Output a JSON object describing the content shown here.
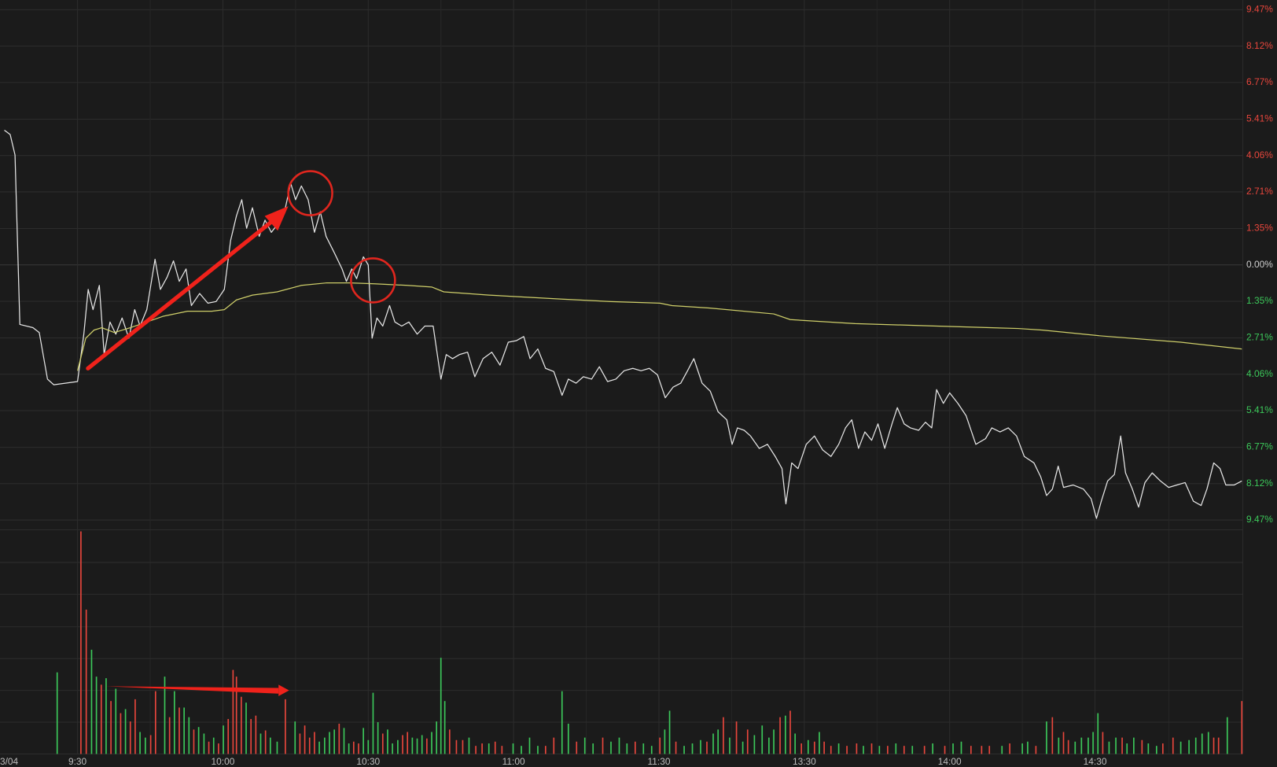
{
  "chart_data": [
    {
      "type": "line",
      "date_label": "3/04",
      "xlim": [
        -16,
        240.5
      ],
      "ylim": [
        -9.47,
        9.47
      ],
      "xticks": [
        {
          "value": 0,
          "label": "9:30"
        },
        {
          "value": 30,
          "label": "10:00"
        },
        {
          "value": 60,
          "label": "10:30"
        },
        {
          "value": 90,
          "label": "11:00"
        },
        {
          "value": 120,
          "label": "11:30"
        },
        {
          "value": 150,
          "label": "13:30"
        },
        {
          "value": 180,
          "label": "14:00"
        },
        {
          "value": 210,
          "label": "14:30"
        }
      ],
      "yticks": [
        {
          "value": 9.47,
          "label": "9.47%"
        },
        {
          "value": 8.12,
          "label": "8.12%"
        },
        {
          "value": 6.77,
          "label": "6.77%"
        },
        {
          "value": 5.41,
          "label": "5.41%"
        },
        {
          "value": 4.06,
          "label": "4.06%"
        },
        {
          "value": 2.71,
          "label": "2.71%"
        },
        {
          "value": 1.35,
          "label": "1.35%"
        },
        {
          "value": 0,
          "label": "0.00%"
        },
        {
          "value": -1.35,
          "label": "1.35%"
        },
        {
          "value": -2.71,
          "label": "2.71%"
        },
        {
          "value": -4.06,
          "label": "4.06%"
        },
        {
          "value": -5.41,
          "label": "5.41%"
        },
        {
          "value": -6.77,
          "label": "6.77%"
        },
        {
          "value": -8.12,
          "label": "8.12%"
        },
        {
          "value": -9.47,
          "label": "9.47%"
        }
      ],
      "tick_colors": {
        "up": "#e8463c",
        "down": "#3cc85a",
        "flat": "#cfcfcf"
      },
      "grid": true,
      "series": [
        {
          "color": "#e6e6e6",
          "x": [
            -15.1,
            -13.9,
            -12.9,
            -11.9,
            -9.2,
            -7.9,
            -6.2,
            -4.9,
            0,
            1.3,
            2.2,
            3.2,
            4.5,
            5.5,
            6.7,
            7.9,
            9.2,
            10.6,
            11.8,
            12.9,
            14.3,
            16.0,
            17.1,
            18.5,
            19.8,
            21.0,
            22.4,
            23.5,
            25.2,
            26.9,
            28.6,
            30.3,
            31.6,
            32.8,
            33.9,
            34.9,
            36.1,
            37.5,
            38.7,
            40.0,
            41.3,
            42.9,
            44.0,
            45.0,
            46.2,
            47.6,
            48.9,
            50.1,
            51.3,
            53.0,
            54.6,
            55.5,
            56.6,
            57.6,
            59.0,
            60.0,
            60.8,
            61.8,
            63.0,
            64.4,
            65.5,
            66.9,
            68.4,
            70.1,
            71.7,
            73.4,
            75.0,
            76.1,
            77.4,
            78.8,
            80.5,
            82.0,
            83.7,
            85.5,
            87.2,
            88.9,
            90.6,
            92.1,
            93.4,
            95.0,
            96.6,
            98.3,
            100.0,
            101.3,
            102.9,
            104.4,
            106.1,
            107.7,
            109.4,
            111.1,
            112.8,
            114.6,
            116.3,
            118.0,
            119.7,
            121.3,
            122.9,
            124.5,
            125.9,
            127.2,
            128.9,
            130.6,
            132.2,
            134.0,
            135.1,
            136.2,
            137.6,
            138.9,
            140.7,
            142.4,
            144.0,
            145.4,
            146.2,
            147.4,
            148.7,
            150.4,
            152.1,
            153.8,
            155.5,
            157.1,
            158.5,
            159.8,
            161.2,
            162.5,
            163.9,
            165.2,
            166.6,
            168.1,
            169.2,
            170.6,
            171.9,
            173.6,
            175.0,
            176.3,
            177.3,
            178.7,
            180.0,
            181.7,
            183.4,
            185.4,
            187.4,
            188.7,
            190.4,
            192.1,
            193.8,
            195.4,
            197.4,
            198.8,
            200.0,
            201.2,
            202.4,
            203.5,
            205.5,
            207.6,
            209.2,
            210.3,
            211.3,
            212.6,
            214.0,
            215.3,
            216.3,
            217.7,
            219.0,
            220.3,
            221.8,
            223.5,
            225.2,
            226.9,
            228.6,
            230.3,
            231.9,
            233.1,
            234.5,
            235.8,
            237.0,
            238.7,
            240.3
          ],
          "values": [
            5.0,
            4.84,
            4.08,
            -2.21,
            -2.33,
            -2.51,
            -4.24,
            -4.45,
            -4.33,
            -2.57,
            -0.91,
            -1.66,
            -0.76,
            -3.33,
            -2.12,
            -2.57,
            -1.97,
            -2.72,
            -1.66,
            -2.27,
            -1.66,
            0.21,
            -0.91,
            -0.45,
            0.15,
            -0.61,
            -0.15,
            -1.51,
            -1.06,
            -1.42,
            -1.36,
            -0.91,
            0.91,
            1.82,
            2.42,
            1.36,
            2.12,
            1.06,
            1.66,
            1.21,
            1.51,
            2.12,
            3.03,
            2.42,
            2.93,
            2.42,
            1.21,
            1.97,
            1.06,
            0.45,
            -0.15,
            -0.61,
            -0.15,
            -0.51,
            0.3,
            0,
            -2.72,
            -1.97,
            -2.27,
            -1.51,
            -2.12,
            -2.27,
            -2.12,
            -2.57,
            -2.27,
            -2.27,
            -4.24,
            -3.33,
            -3.48,
            -3.33,
            -3.24,
            -4.15,
            -3.48,
            -3.24,
            -3.72,
            -2.87,
            -2.81,
            -2.66,
            -3.48,
            -3.12,
            -3.84,
            -3.96,
            -4.84,
            -4.24,
            -4.39,
            -4.15,
            -4.24,
            -3.78,
            -4.33,
            -4.24,
            -3.93,
            -3.84,
            -3.93,
            -3.84,
            -4.08,
            -4.93,
            -4.54,
            -4.39,
            -3.93,
            -3.48,
            -4.39,
            -4.69,
            -5.45,
            -5.75,
            -6.66,
            -6.05,
            -6.14,
            -6.35,
            -6.81,
            -6.66,
            -7.11,
            -7.56,
            -8.87,
            -7.35,
            -7.56,
            -6.66,
            -6.35,
            -6.87,
            -7.11,
            -6.66,
            -6.05,
            -5.75,
            -6.81,
            -6.2,
            -6.51,
            -5.9,
            -6.81,
            -5.9,
            -5.3,
            -5.9,
            -6.05,
            -6.14,
            -5.84,
            -6.05,
            -4.63,
            -5.14,
            -4.75,
            -5.14,
            -5.6,
            -6.66,
            -6.45,
            -6.05,
            -6.2,
            -6.05,
            -6.35,
            -7.11,
            -7.35,
            -7.87,
            -8.56,
            -8.32,
            -7.47,
            -8.26,
            -8.17,
            -8.32,
            -8.68,
            -9.41,
            -8.77,
            -8.02,
            -7.78,
            -6.35,
            -7.72,
            -8.32,
            -8.99,
            -8.08,
            -7.72,
            -8.02,
            -8.26,
            -8.17,
            -8.08,
            -8.77,
            -8.93,
            -8.32,
            -7.35,
            -7.56,
            -8.17,
            -8.17,
            -8.02
          ]
        },
        {
          "color": "#cfcf6a",
          "x": [
            0,
            1.7,
            3.4,
            5.0,
            7.6,
            10.9,
            14.3,
            17.6,
            22.7,
            27.7,
            30.3,
            32.8,
            36.1,
            41.2,
            46.2,
            51.3,
            56.3,
            61.3,
            68.1,
            73.1,
            75.6,
            84.9,
            100,
            110.1,
            120.2,
            122.7,
            130.3,
            143.7,
            147.1,
            160.5,
            177.3,
            194.1,
            199.2,
            210.9,
            227.7,
            240.3
          ],
          "values": [
            -3.93,
            -2.72,
            -2.42,
            -2.33,
            -2.51,
            -2.33,
            -2.12,
            -1.91,
            -1.72,
            -1.72,
            -1.66,
            -1.3,
            -1.12,
            -1.0,
            -0.76,
            -0.67,
            -0.67,
            -0.7,
            -0.76,
            -0.82,
            -1.0,
            -1.12,
            -1.27,
            -1.36,
            -1.42,
            -1.51,
            -1.6,
            -1.82,
            -2.03,
            -2.18,
            -2.27,
            -2.36,
            -2.42,
            -2.63,
            -2.87,
            -3.12
          ]
        }
      ]
    },
    {
      "type": "bar",
      "xlim": [
        -16,
        240.5
      ],
      "ylim": [
        0,
        100
      ],
      "series": [
        {
          "color": "#e8463c",
          "x": [
            0.7,
            1.8,
            4.9,
            6.9,
            8.9,
            10.9,
            11.9,
            15.1,
            16.1,
            19.0,
            21.0,
            24.0,
            27.1,
            29.1,
            31.1,
            32.1,
            32.8,
            33.8,
            35.8,
            36.8,
            38.8,
            42.9,
            45.9,
            46.9,
            47.9,
            48.9,
            54.0,
            57.0,
            58.0,
            63.0,
            67.1,
            68.1,
            72.1,
            76.8,
            78.2,
            79.5,
            82.2,
            83.5,
            86.2,
            87.6,
            96.6,
            98.3,
            103.0,
            108.4,
            115.1,
            120.2,
            123.5,
            129.9,
            133.3,
            136.0,
            138.3,
            145.0,
            147.1,
            149.4,
            152.1,
            154.1,
            155.5,
            158.8,
            160.8,
            163.9,
            167.2,
            170.6,
            174.8,
            179.0,
            184.4,
            186.6,
            188.2,
            192.4,
            197.8,
            201.2,
            203.5,
            204.5,
            211.6,
            215.6,
            219.7,
            224.0,
            226.1,
            234.5,
            235.5,
            240.3
          ],
          "values": [
            99.3,
            64.4,
            30.9,
            23.6,
            18.2,
            14.5,
            24.4,
            8.4,
            28,
            16.4,
            20.7,
            10.9,
            5.5,
            4.7,
            15.6,
            37.5,
            34.5,
            25.5,
            15.6,
            17.1,
            10.5,
            24.4,
            9.1,
            12.7,
            7.3,
            9.8,
            13.5,
            5.5,
            4.7,
            9.1,
            8.4,
            9.8,
            6.9,
            10.9,
            6.2,
            6.2,
            3.6,
            4.7,
            5.5,
            3.6,
            3.6,
            7.3,
            5.5,
            7.3,
            5.5,
            7.3,
            5.5,
            5.5,
            16.4,
            14.5,
            10.9,
            16.4,
            19.3,
            4.7,
            5.5,
            5.5,
            3.6,
            3.6,
            4.7,
            4.7,
            3.6,
            3.6,
            3.6,
            3.6,
            3.6,
            3.6,
            3.6,
            4.7,
            3.6,
            16.4,
            9.8,
            6.2,
            9.8,
            7.3,
            6.2,
            4.7,
            7.3,
            7.3,
            7.3,
            23.6
          ]
        },
        {
          "color": "#3cc85a",
          "x": [
            -4.2,
            2.9,
            3.9,
            5.9,
            7.9,
            9.9,
            12.9,
            14.0,
            18.0,
            20.0,
            22.0,
            23.0,
            25.0,
            26.1,
            28.1,
            30.1,
            34.8,
            37.8,
            39.8,
            41.2,
            44.9,
            49.9,
            51.0,
            52.0,
            53.0,
            55.0,
            56.0,
            59.0,
            60.0,
            61.0,
            62.0,
            64.0,
            65.0,
            66.1,
            69.1,
            70.1,
            71.1,
            73.1,
            74.1,
            75.0,
            75.8,
            80.8,
            84.9,
            89.9,
            91.6,
            93.3,
            95.0,
            100,
            101.3,
            104.7,
            106.4,
            110.1,
            111.8,
            113.4,
            116.8,
            118.5,
            121.2,
            122.2,
            125.2,
            126.9,
            128.6,
            131.2,
            132.2,
            134.6,
            137.3,
            139.7,
            141.3,
            142.7,
            143.7,
            146.1,
            148.1,
            150.8,
            153.1,
            157.1,
            162.2,
            165.5,
            168.9,
            172.3,
            176.5,
            180.7,
            182.4,
            190.8,
            195.0,
            196.1,
            200.0,
            202.5,
            205.9,
            207.2,
            208.6,
            209.6,
            210.6,
            212.9,
            214.3,
            216.6,
            218.0,
            221.0,
            222.7,
            227.7,
            229.4,
            230.8,
            232.1,
            233.4,
            237.3
          ],
          "values": [
            36.4,
            46.5,
            34.5,
            33.8,
            29.1,
            20,
            9.8,
            7.3,
            34.5,
            28,
            20.7,
            16.4,
            12,
            9.1,
            7.3,
            12.7,
            22.9,
            9.1,
            7.3,
            5.5,
            14.5,
            5.5,
            7.3,
            9.8,
            10.9,
            11.6,
            4.7,
            11.6,
            6.2,
            27.3,
            14.2,
            10.9,
            4.7,
            6.2,
            7.3,
            6.9,
            8.4,
            9.8,
            14.5,
            42.9,
            23.6,
            7.3,
            4.7,
            4.7,
            3.6,
            7.3,
            3.6,
            28,
            13.5,
            7.3,
            4.7,
            5.5,
            7.3,
            4.7,
            4.7,
            3.6,
            10.9,
            19.3,
            3.6,
            4.7,
            6.2,
            9.1,
            10.9,
            7.3,
            5.5,
            8.4,
            12.7,
            7.3,
            10.9,
            17.1,
            9.1,
            6.2,
            9.8,
            4.7,
            3.6,
            3.6,
            4.7,
            3.6,
            4.7,
            4.7,
            5.5,
            3.6,
            4.7,
            5.5,
            14.5,
            7.3,
            5.5,
            7.3,
            7.3,
            9.8,
            18.2,
            5.5,
            7.3,
            4.7,
            7.3,
            4.7,
            3.6,
            5.5,
            6.2,
            7.3,
            9.1,
            9.8,
            16.4
          ]
        }
      ]
    }
  ]
}
